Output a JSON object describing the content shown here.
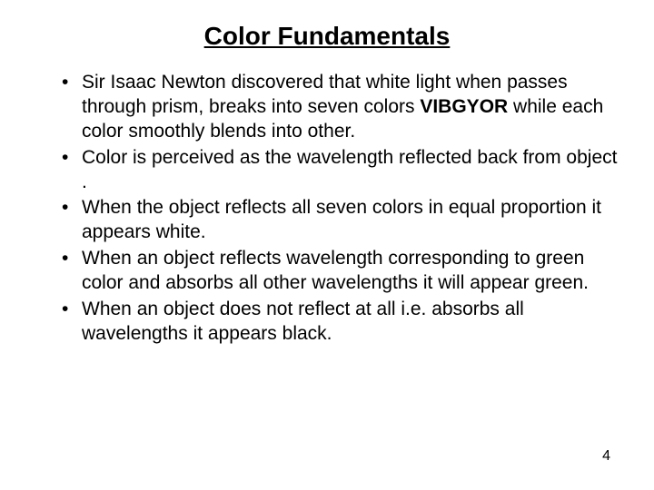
{
  "title": "Color Fundamentals",
  "bullets": [
    {
      "pre": "Sir Isaac Newton discovered that white light when passes through prism, breaks  into seven colors ",
      "bold": "VIBGYOR",
      "post": " while each color smoothly blends into other."
    },
    {
      "text": "Color is perceived as the wavelength reflected back from object ."
    },
    {
      "text": "When the object reflects all seven colors in equal proportion it appears white."
    },
    {
      "text": "When an object reflects wavelength corresponding to green color and absorbs all other wavelengths it will appear green."
    },
    {
      "text": "When an object does not reflect at all i.e. absorbs all wavelengths it appears black."
    }
  ],
  "pageNumber": "4"
}
